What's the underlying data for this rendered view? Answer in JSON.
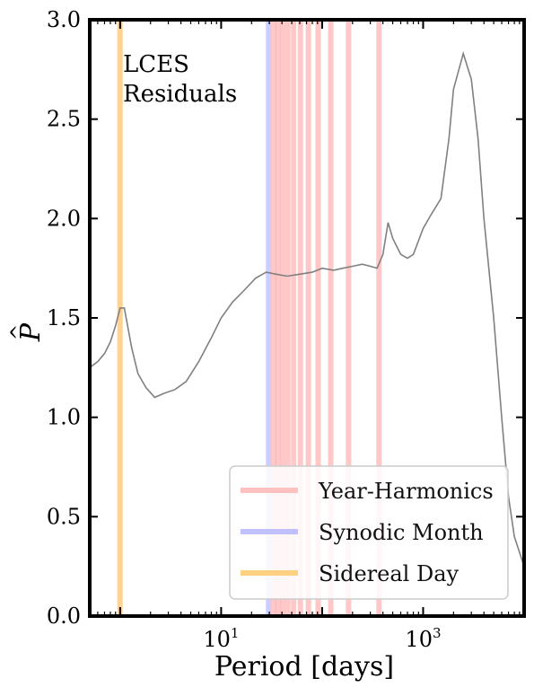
{
  "chart_data": {
    "type": "line",
    "xlabel": "Period [days]",
    "ylabel_main": "P",
    "ylabel_hat": "^",
    "x_scale": "log",
    "xlim": [
      0.5,
      10000
    ],
    "ylim": [
      0.0,
      3.0
    ],
    "y_ticks": [
      "0.0",
      "0.5",
      "1.0",
      "1.5",
      "2.0",
      "2.5",
      "3.0"
    ],
    "y_tick_values": [
      0.0,
      0.5,
      1.0,
      1.5,
      2.0,
      2.5,
      3.0
    ],
    "x_tick_base": "10",
    "x_tick_exponents": [
      "1",
      "3"
    ],
    "x_tick_values": [
      10,
      1000
    ],
    "annotation_lines": [
      "LCES",
      "Residuals"
    ],
    "legend_placement": "lower-right",
    "legend": [
      {
        "label": "Year-Harmonics",
        "color": "#ffc0c0"
      },
      {
        "label": "Synodic Month",
        "color": "#c0c0ff"
      },
      {
        "label": "Sidereal Day",
        "color": "#ffd080"
      }
    ],
    "vbands": [
      {
        "group": "Sidereal Day",
        "color": "#ffc060",
        "periods": [
          0.997
        ]
      },
      {
        "group": "Synodic Month",
        "color": "#b8b8ff",
        "periods": [
          29.5
        ]
      },
      {
        "group": "Year-Harmonics",
        "color": "#ffb0b0",
        "periods": [
          33.2,
          36.5,
          40.6,
          45.7,
          52.2,
          60.9,
          73.1,
          91.3,
          121.8,
          182.6,
          365.25
        ]
      }
    ],
    "series": [
      {
        "color": "#808080",
        "x": [
          0.5,
          0.6,
          0.7,
          0.8,
          0.9,
          1.0,
          1.1,
          1.3,
          1.5,
          1.8,
          2.2,
          2.7,
          3.5,
          4.5,
          6,
          8,
          10,
          13,
          17,
          22,
          28,
          35,
          45,
          60,
          80,
          100,
          130,
          160,
          200,
          250,
          300,
          350,
          400,
          450,
          500,
          600,
          700,
          800,
          1000,
          1200,
          1500,
          1800,
          2000,
          2500,
          3000,
          3500,
          4000,
          5000,
          6000,
          7000,
          8000,
          10000
        ],
        "y": [
          1.25,
          1.28,
          1.32,
          1.38,
          1.46,
          1.55,
          1.55,
          1.35,
          1.22,
          1.15,
          1.1,
          1.12,
          1.14,
          1.18,
          1.28,
          1.4,
          1.5,
          1.58,
          1.64,
          1.7,
          1.73,
          1.72,
          1.71,
          1.72,
          1.73,
          1.75,
          1.74,
          1.75,
          1.76,
          1.77,
          1.76,
          1.75,
          1.82,
          1.98,
          1.9,
          1.82,
          1.8,
          1.82,
          1.95,
          2.02,
          2.1,
          2.4,
          2.65,
          2.83,
          2.7,
          2.4,
          2.0,
          1.5,
          1.0,
          0.6,
          0.4,
          0.25
        ]
      }
    ]
  }
}
